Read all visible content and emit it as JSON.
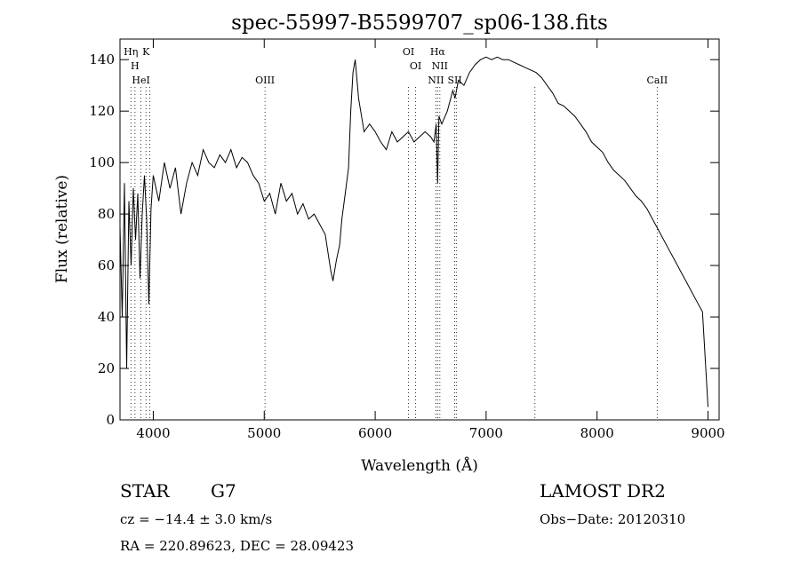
{
  "chart_data": {
    "type": "line",
    "title": "spec-55997-B5599707_sp06-138.fits",
    "xlabel": "Wavelength (Å)",
    "ylabel": "Flux (relative)",
    "xlim": [
      3700,
      9100
    ],
    "ylim": [
      0,
      148
    ],
    "x_ticks": [
      4000,
      5000,
      6000,
      7000,
      8000,
      9000
    ],
    "y_ticks": [
      0,
      20,
      40,
      60,
      80,
      100,
      120,
      140
    ],
    "grid": false,
    "line_color": "#000000",
    "marker_color": "#000000",
    "series": [
      {
        "x": [
          3700,
          3720,
          3740,
          3760,
          3780,
          3800,
          3820,
          3840,
          3860,
          3880,
          3900,
          3920,
          3940,
          3960,
          3980,
          4000,
          4050,
          4100,
          4150,
          4200,
          4250,
          4300,
          4350,
          4400,
          4450,
          4500,
          4550,
          4600,
          4650,
          4700,
          4750,
          4800,
          4850,
          4900,
          4950,
          5000,
          5050,
          5100,
          5150,
          5200,
          5250,
          5300,
          5350,
          5400,
          5450,
          5500,
          5550,
          5600,
          5620,
          5650,
          5680,
          5700,
          5730,
          5760,
          5780,
          5800,
          5820,
          5850,
          5900,
          5950,
          6000,
          6050,
          6100,
          6150,
          6200,
          6250,
          6300,
          6350,
          6400,
          6450,
          6500,
          6530,
          6550,
          6563,
          6575,
          6600,
          6650,
          6700,
          6720,
          6750,
          6800,
          6850,
          6900,
          6950,
          7000,
          7050,
          7100,
          7150,
          7200,
          7250,
          7300,
          7350,
          7400,
          7450,
          7500,
          7550,
          7600,
          7650,
          7700,
          7750,
          7800,
          7850,
          7900,
          7950,
          8000,
          8050,
          8100,
          8150,
          8200,
          8250,
          8300,
          8350,
          8400,
          8450,
          8500,
          8550,
          8600,
          8650,
          8700,
          8750,
          8800,
          8850,
          8900,
          8950,
          8980,
          9000
        ],
        "y": [
          75,
          40,
          92,
          20,
          85,
          60,
          90,
          70,
          88,
          55,
          80,
          95,
          78,
          45,
          82,
          95,
          85,
          100,
          90,
          98,
          80,
          92,
          100,
          95,
          105,
          100,
          98,
          103,
          100,
          105,
          98,
          102,
          100,
          95,
          92,
          85,
          88,
          80,
          92,
          85,
          88,
          80,
          84,
          78,
          80,
          76,
          72,
          58,
          54,
          62,
          68,
          78,
          88,
          98,
          120,
          135,
          140,
          125,
          112,
          115,
          112,
          108,
          105,
          112,
          108,
          110,
          112,
          108,
          110,
          112,
          110,
          108,
          115,
          92,
          118,
          115,
          120,
          128,
          125,
          132,
          130,
          135,
          138,
          140,
          141,
          140,
          141,
          140,
          140,
          139,
          138,
          137,
          136,
          135,
          133,
          130,
          127,
          123,
          122,
          120,
          118,
          115,
          112,
          108,
          106,
          104,
          100,
          97,
          95,
          93,
          90,
          87,
          85,
          82,
          78,
          74,
          70,
          66,
          62,
          58,
          54,
          50,
          46,
          42,
          20,
          5
        ]
      }
    ],
    "line_markers": [
      {
        "x": 3798,
        "label": "Hη"
      },
      {
        "x": 3835,
        "label": "H"
      },
      {
        "x": 3889,
        "label": "HeI"
      },
      {
        "x": 3934,
        "label": "K"
      },
      {
        "x": 3968,
        "label": ""
      },
      {
        "x": 5007,
        "label": "OIII"
      },
      {
        "x": 6300,
        "label": "OI"
      },
      {
        "x": 6364,
        "label": "OI"
      },
      {
        "x": 6548,
        "label": "NII"
      },
      {
        "x": 6563,
        "label": "Hα"
      },
      {
        "x": 6583,
        "label": "NII"
      },
      {
        "x": 6717,
        "label": "SII"
      },
      {
        "x": 6731,
        "label": ""
      },
      {
        "x": 7440,
        "label": ""
      },
      {
        "x": 8542,
        "label": "CaII"
      }
    ]
  },
  "info": {
    "object_class": "STAR",
    "subclass": "G7",
    "survey": "LAMOST DR2",
    "cz": "cz = −14.4 ± 3.0 km/s",
    "obs_date": "Obs−Date: 20120310",
    "coords": "RA = 220.89623, DEC =  28.09423"
  }
}
